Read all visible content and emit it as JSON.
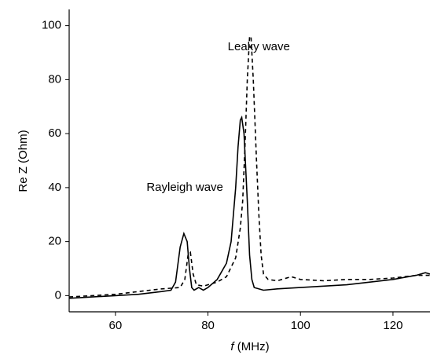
{
  "chart_data": {
    "type": "line",
    "xlabel_symbol": "f",
    "xlabel_unit": "(MHz)",
    "ylabel": "Re Z (Ohm)",
    "annotations": [
      {
        "text": "Rayleigh wave",
        "x": 75,
        "y": 40
      },
      {
        "text": "Leaky wave",
        "x": 91,
        "y": 92
      }
    ],
    "xlim": [
      50,
      128
    ],
    "ylim": [
      -6,
      106
    ],
    "xticks": [
      60,
      80,
      100,
      120
    ],
    "yticks": [
      0,
      20,
      40,
      60,
      80,
      100
    ],
    "grid": false,
    "series": [
      {
        "color": "#000000",
        "dashed": false,
        "x": [
          50,
          55,
          60,
          65,
          70,
          72,
          73,
          74,
          74.8,
          75.5,
          76,
          76.5,
          77,
          78,
          79,
          80,
          82,
          84,
          85,
          86,
          86.5,
          87,
          87.3,
          87.8,
          88.5,
          89,
          89.5,
          90,
          92,
          95,
          100,
          105,
          110,
          115,
          120,
          125,
          127,
          128
        ],
        "values": [
          -1,
          -0.5,
          0,
          0.5,
          1.5,
          2,
          5,
          18,
          23,
          20,
          10,
          3,
          2,
          3,
          2,
          3,
          6,
          12,
          20,
          40,
          55,
          65,
          66,
          60,
          35,
          15,
          6,
          3,
          2,
          2.5,
          3,
          3.5,
          4,
          5,
          6,
          7.5,
          8.5,
          8
        ]
      },
      {
        "color": "#000000",
        "dashed": true,
        "x": [
          50,
          55,
          60,
          65,
          70,
          74,
          75,
          75.7,
          76.2,
          76.8,
          77.5,
          79,
          80,
          82,
          84,
          86,
          87,
          87.5,
          88,
          88.5,
          89,
          89.3,
          89.8,
          90.5,
          91,
          91.5,
          92,
          93,
          95,
          98,
          100,
          105,
          110,
          115,
          120,
          125,
          128
        ],
        "values": [
          -0.5,
          0,
          0.5,
          1.5,
          2.5,
          3,
          6,
          15,
          16,
          8,
          4,
          3.5,
          4,
          5,
          7,
          14,
          25,
          35,
          55,
          80,
          96,
          96,
          80,
          50,
          30,
          15,
          8,
          6,
          5.5,
          7,
          6,
          5.5,
          6,
          6,
          6.5,
          7.5,
          7.5
        ]
      }
    ]
  }
}
